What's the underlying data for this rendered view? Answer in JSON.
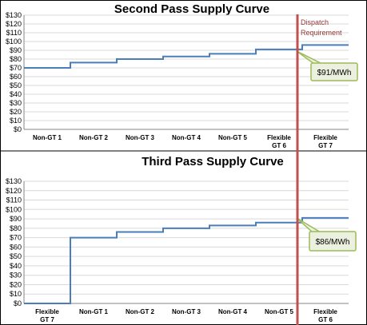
{
  "chart_data": [
    {
      "type": "line",
      "title": "Second Pass Supply Curve",
      "y_ticks": [
        "$0",
        "$10",
        "$20",
        "$30",
        "$40",
        "$50",
        "$60",
        "$70",
        "$80",
        "$90",
        "$100",
        "$110",
        "$120",
        "$130"
      ],
      "ylim": [
        0,
        130
      ],
      "categories": [
        "Non-GT 1",
        "Non-GT 2",
        "Non-GT 3",
        "Non-GT 4",
        "Non-GT 5",
        "Flexible GT 6",
        "Flexible GT 7"
      ],
      "category_lines": [
        [
          "Non-GT 1"
        ],
        [
          "Non-GT 2"
        ],
        [
          "Non-GT 3"
        ],
        [
          "Non-GT 4"
        ],
        [
          "Non-GT 5"
        ],
        [
          "Flexible",
          "GT 6"
        ],
        [
          "Flexible",
          "GT 7"
        ]
      ],
      "values": [
        70,
        76,
        80,
        83,
        86,
        91,
        96
      ],
      "annotations": {
        "requirement_line": [
          "Dispatch",
          "Requirement"
        ],
        "callout": "$91/MWh"
      }
    },
    {
      "type": "line",
      "title": "Third Pass Supply Curve",
      "y_ticks": [
        "$0",
        "$10",
        "$20",
        "$30",
        "$40",
        "$50",
        "$60",
        "$70",
        "$80",
        "$90",
        "$100",
        "$110",
        "$120",
        "$130"
      ],
      "ylim": [
        0,
        130
      ],
      "categories": [
        "Flexible GT 7",
        "Non-GT 1",
        "Non-GT 2",
        "Non-GT 3",
        "Non-GT 4",
        "Non-GT 5",
        "Flexible GT 6"
      ],
      "category_lines": [
        [
          "Flexible",
          "GT 7"
        ],
        [
          "Non-GT 1"
        ],
        [
          "Non-GT 2"
        ],
        [
          "Non-GT 3"
        ],
        [
          "Non-GT 4"
        ],
        [
          "Non-GT 5"
        ],
        [
          "Flexible",
          "GT 6"
        ]
      ],
      "values": [
        0,
        70,
        76,
        80,
        83,
        86,
        91
      ],
      "annotations": {
        "callout": "$86/MWh"
      }
    }
  ]
}
